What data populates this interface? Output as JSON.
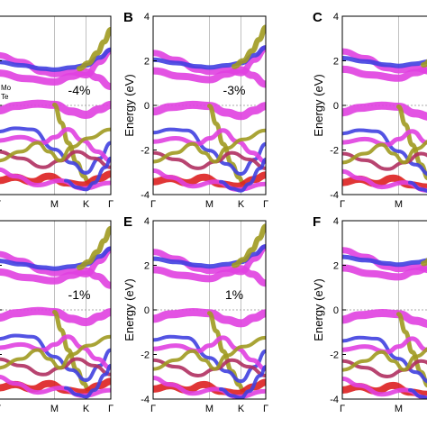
{
  "chart_data": {
    "type": "band-structure",
    "ylabel": "Energy (eV)",
    "ylim": [
      -4,
      4
    ],
    "yticks": [
      -4,
      -2,
      0,
      2,
      4
    ],
    "kpath_labels": [
      "Γ",
      "M",
      "K",
      "Γ"
    ],
    "kpath_positions": [
      0,
      0.5,
      0.78,
      1.0
    ],
    "fermi_level": 0,
    "colors": {
      "mo": "#4040e0",
      "te": "#a09a20",
      "mix": "#e040e0",
      "deep": "#dd2020",
      "dark": "#b03060"
    },
    "legend": [
      "Mo",
      "Te"
    ],
    "panels": [
      {
        "letter": "",
        "strain": "-4%",
        "shift": -0.25
      },
      {
        "letter": "B",
        "strain": "-3%",
        "shift": -0.15
      },
      {
        "letter": "C",
        "strain": "",
        "shift": -0.08
      },
      {
        "letter": "",
        "strain": "-1%",
        "shift": 0.0
      },
      {
        "letter": "E",
        "strain": "1%",
        "shift": 0.1
      },
      {
        "letter": "F",
        "strain": "",
        "shift": 0.18
      }
    ],
    "bands": [
      {
        "color": "mix",
        "width": 7,
        "x": [
          0,
          0.2,
          0.4,
          0.5,
          0.65,
          0.78,
          0.9,
          1.0
        ],
        "y": [
          2.5,
          2.2,
          1.75,
          1.65,
          1.75,
          1.6,
          2.2,
          2.7
        ]
      },
      {
        "color": "mo",
        "width": 5,
        "x": [
          0,
          0.2,
          0.4,
          0.5,
          0.65,
          0.78,
          0.9,
          1.0
        ],
        "y": [
          2.2,
          2.05,
          1.9,
          1.85,
          1.95,
          2.05,
          2.4,
          2.75
        ]
      },
      {
        "color": "mix",
        "width": 8,
        "x": [
          0,
          0.25,
          0.5,
          0.65,
          0.78,
          0.88,
          1.0
        ],
        "y": [
          1.7,
          1.45,
          1.3,
          1.55,
          1.75,
          1.5,
          1.1
        ]
      },
      {
        "color": "te",
        "width": 6,
        "x": [
          0.72,
          0.8,
          0.88,
          0.94,
          1.0
        ],
        "y": [
          1.9,
          2.15,
          2.6,
          3.1,
          3.65
        ]
      },
      {
        "color": "mix",
        "width": 9,
        "x": [
          0,
          0.15,
          0.35,
          0.5,
          0.65,
          0.78,
          0.9,
          1.0
        ],
        "y": [
          -0.35,
          -0.15,
          -0.05,
          -0.1,
          -0.4,
          -0.55,
          -0.3,
          -0.1
        ]
      },
      {
        "color": "te",
        "width": 5,
        "x": [
          0.5,
          0.56,
          0.62,
          0.7,
          0.76,
          0.8
        ],
        "y": [
          -0.1,
          -0.9,
          -1.8,
          -2.7,
          -3.3,
          -3.55
        ]
      },
      {
        "color": "mo",
        "width": 4,
        "x": [
          0,
          0.15,
          0.3,
          0.5,
          0.65,
          0.78,
          0.9,
          1.0
        ],
        "y": [
          -1.3,
          -1.15,
          -1.2,
          -2.1,
          -2.7,
          -3.15,
          -2.5,
          -1.8
        ]
      },
      {
        "color": "mix",
        "width": 5,
        "x": [
          0,
          0.2,
          0.4,
          0.5,
          0.62,
          0.75,
          0.88,
          1.0
        ],
        "y": [
          -1.7,
          -1.55,
          -1.8,
          -1.55,
          -1.2,
          -1.7,
          -2.2,
          -2.6
        ]
      },
      {
        "color": "dark",
        "width": 4,
        "x": [
          0,
          0.2,
          0.4,
          0.55,
          0.7,
          0.85,
          1.0
        ],
        "y": [
          -2.2,
          -2.5,
          -2.9,
          -2.6,
          -2.2,
          -2.5,
          -2.9
        ]
      },
      {
        "color": "te",
        "width": 4,
        "x": [
          0,
          0.2,
          0.35,
          0.45,
          0.55,
          0.65,
          0.8,
          1.0
        ],
        "y": [
          -2.6,
          -2.2,
          -1.8,
          -2.2,
          -2.6,
          -2.0,
          -1.6,
          -1.2
        ]
      },
      {
        "color": "deep",
        "width": 8,
        "x": [
          0,
          0.15,
          0.3,
          0.45,
          0.6,
          0.75,
          0.9,
          1.0
        ],
        "y": [
          -3.5,
          -3.35,
          -3.55,
          -3.3,
          -3.6,
          -3.7,
          -3.4,
          -3.2
        ]
      },
      {
        "color": "mix",
        "width": 5,
        "x": [
          0,
          0.15,
          0.35,
          0.55,
          0.75,
          1.0
        ],
        "y": [
          -3.0,
          -3.3,
          -3.7,
          -3.5,
          -3.85,
          -3.6
        ]
      },
      {
        "color": "mo",
        "width": 4,
        "x": [
          0.6,
          0.7,
          0.78,
          0.85,
          0.95,
          1.0
        ],
        "y": [
          -3.5,
          -3.8,
          -3.9,
          -3.6,
          -2.9,
          -2.5
        ]
      }
    ]
  }
}
